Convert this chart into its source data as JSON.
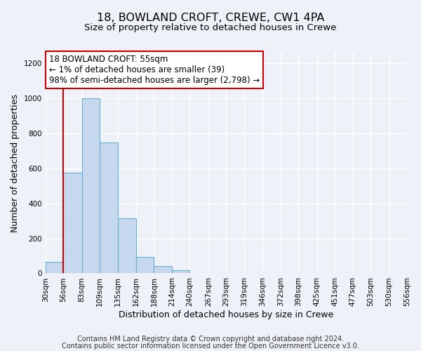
{
  "title": "18, BOWLAND CROFT, CREWE, CW1 4PA",
  "subtitle": "Size of property relative to detached houses in Crewe",
  "xlabel": "Distribution of detached houses by size in Crewe",
  "ylabel": "Number of detached properties",
  "bar_color": "#c5d8ed",
  "bar_edge_color": "#6aaed6",
  "bin_edges": [
    30,
    56,
    83,
    109,
    135,
    162,
    188,
    214,
    240,
    267,
    293,
    319,
    346,
    372,
    398,
    425,
    451,
    477,
    503,
    530,
    556
  ],
  "bar_heights": [
    65,
    575,
    1000,
    748,
    315,
    95,
    40,
    18,
    0,
    0,
    0,
    0,
    0,
    0,
    0,
    0,
    0,
    0,
    0,
    0
  ],
  "x_tick_labels": [
    "30sqm",
    "56sqm",
    "83sqm",
    "109sqm",
    "135sqm",
    "162sqm",
    "188sqm",
    "214sqm",
    "240sqm",
    "267sqm",
    "293sqm",
    "319sqm",
    "346sqm",
    "372sqm",
    "398sqm",
    "425sqm",
    "451sqm",
    "477sqm",
    "503sqm",
    "530sqm",
    "556sqm"
  ],
  "ylim": [
    0,
    1260
  ],
  "yticks": [
    0,
    200,
    400,
    600,
    800,
    1000,
    1200
  ],
  "property_line_x": 56,
  "annotation_line1": "18 BOWLAND CROFT: 55sqm",
  "annotation_line2": "← 1% of detached houses are smaller (39)",
  "annotation_line3": "98% of semi-detached houses are larger (2,798) →",
  "annotation_box_color": "#ffffff",
  "annotation_box_edge_color": "#cc0000",
  "property_line_color": "#cc0000",
  "footer_line1": "Contains HM Land Registry data © Crown copyright and database right 2024.",
  "footer_line2": "Contains public sector information licensed under the Open Government Licence v3.0.",
  "background_color": "#eef2f8",
  "plot_bg_color": "#eef2f8",
  "grid_color": "#ffffff",
  "title_fontsize": 11.5,
  "subtitle_fontsize": 9.5,
  "axis_label_fontsize": 9,
  "tick_fontsize": 7.5,
  "annotation_fontsize": 8.5,
  "footer_fontsize": 7
}
